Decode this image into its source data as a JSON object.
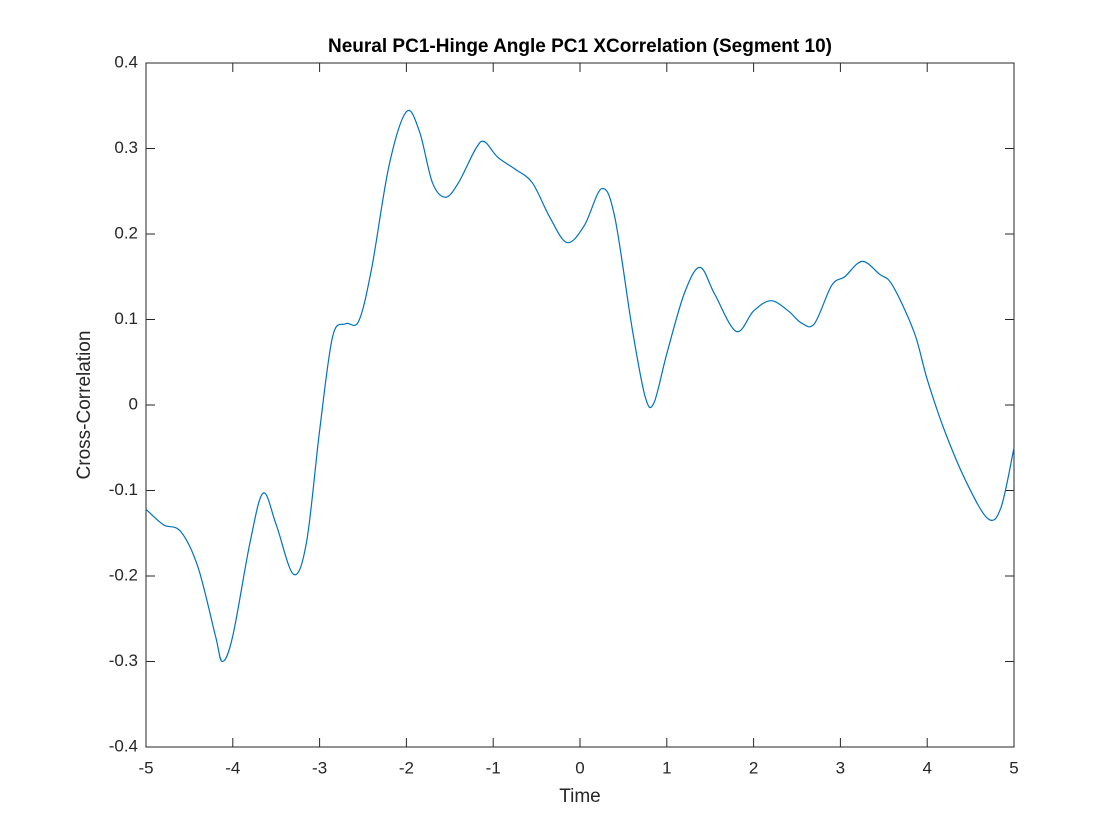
{
  "chart_data": {
    "type": "line",
    "title": "Neural PC1-Hinge Angle PC1 XCorrelation (Segment 10)",
    "x_label": "Time",
    "y_label": "Cross-Correlation",
    "xlim": [
      -5,
      5
    ],
    "ylim": [
      -0.4,
      0.4
    ],
    "xticks": [
      -5,
      -4,
      -3,
      -2,
      -1,
      0,
      1,
      2,
      3,
      4,
      5
    ],
    "yticks": [
      -0.4,
      -0.3,
      -0.2,
      -0.1,
      0,
      0.1,
      0.2,
      0.3,
      0.4
    ],
    "grid": false,
    "series": [
      {
        "color": "#0072bd",
        "x": [
          -5,
          -4.8,
          -4.6,
          -4.4,
          -4.2,
          -4.12,
          -4.0,
          -3.8,
          -3.65,
          -3.5,
          -3.3,
          -3.15,
          -3.0,
          -2.85,
          -2.7,
          -2.55,
          -2.4,
          -2.2,
          -2.0,
          -1.85,
          -1.7,
          -1.55,
          -1.4,
          -1.2,
          -1.1,
          -0.95,
          -0.75,
          -0.55,
          -0.35,
          -0.15,
          0.05,
          0.25,
          0.4,
          0.6,
          0.75,
          0.85,
          1.0,
          1.2,
          1.38,
          1.55,
          1.8,
          2.0,
          2.2,
          2.4,
          2.55,
          2.7,
          2.9,
          3.05,
          3.25,
          3.45,
          3.6,
          3.85,
          4.0,
          4.2,
          4.45,
          4.7,
          4.85,
          5.0
        ],
        "values": [
          -0.122,
          -0.14,
          -0.148,
          -0.19,
          -0.27,
          -0.3,
          -0.27,
          -0.16,
          -0.103,
          -0.14,
          -0.198,
          -0.16,
          -0.03,
          0.08,
          0.095,
          0.098,
          0.16,
          0.28,
          0.343,
          0.32,
          0.26,
          0.243,
          0.26,
          0.3,
          0.308,
          0.29,
          0.276,
          0.26,
          0.22,
          0.19,
          0.21,
          0.253,
          0.22,
          0.09,
          0.01,
          0.002,
          0.06,
          0.13,
          0.161,
          0.13,
          0.086,
          0.11,
          0.122,
          0.11,
          0.096,
          0.095,
          0.14,
          0.15,
          0.168,
          0.153,
          0.14,
          0.085,
          0.03,
          -0.03,
          -0.09,
          -0.133,
          -0.12,
          -0.05
        ]
      }
    ]
  }
}
